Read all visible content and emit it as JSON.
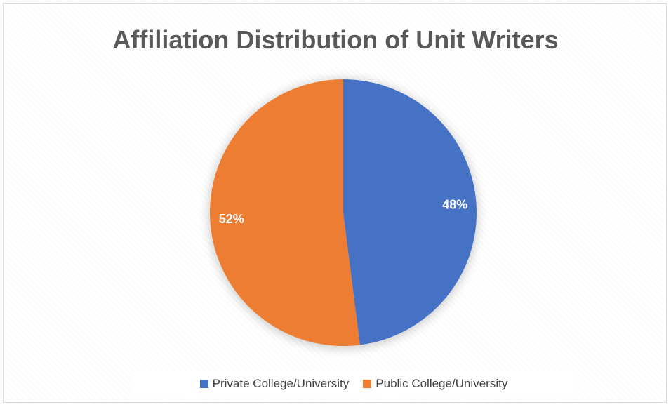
{
  "chart_data": {
    "type": "pie",
    "title": "Affiliation Distribution of Unit Writers",
    "categories": [
      "Private College/University",
      "Public College/University"
    ],
    "values": [
      48,
      52
    ],
    "data_labels": [
      "48%",
      "52%"
    ],
    "colors": [
      "#4472c4",
      "#ed7d31"
    ],
    "legend_placement": "bottom"
  }
}
